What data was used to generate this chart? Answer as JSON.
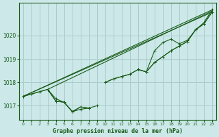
{
  "title": "Graphe pression niveau de la mer (hPa)",
  "bg_color": "#cce8e8",
  "grid_color": "#aacccc",
  "line_color": "#1a5c1a",
  "xlim": [
    -0.5,
    23.5
  ],
  "ylim": [
    1016.4,
    1021.4
  ],
  "yticks": [
    1017,
    1018,
    1019,
    1020
  ],
  "xticks": [
    0,
    1,
    2,
    3,
    4,
    5,
    6,
    7,
    8,
    9,
    10,
    11,
    12,
    13,
    14,
    15,
    16,
    17,
    18,
    19,
    20,
    21,
    22,
    23
  ],
  "series_main": [
    1017.4,
    1017.5,
    1017.6,
    1017.7,
    1017.3,
    1017.15,
    1016.75,
    1016.95,
    1016.9,
    null,
    1018.0,
    1018.15,
    1018.25,
    1018.35,
    1018.55,
    1018.45,
    1018.85,
    1019.1,
    1019.35,
    1019.55,
    1019.75,
    1020.25,
    1020.5,
    1021.0
  ],
  "series_low": [
    1017.4,
    1017.5,
    1017.6,
    1017.7,
    1017.2,
    1017.15,
    1016.75,
    1016.85,
    1016.9,
    null,
    1018.0,
    1018.15,
    1018.25,
    1018.35,
    1018.55,
    1018.45,
    1018.85,
    1019.1,
    1019.35,
    1019.55,
    1019.75,
    1020.25,
    1020.5,
    1021.0
  ],
  "series_spike": [
    null,
    null,
    null,
    1017.7,
    1017.2,
    1017.15,
    1016.75,
    1016.95,
    1016.9,
    1017.0,
    null,
    null,
    null,
    null,
    1018.55,
    1018.45,
    1019.35,
    1019.7,
    1019.85,
    1019.65,
    1019.8,
    1020.25,
    1020.55,
    1021.1
  ],
  "trend1_x": [
    0,
    23
  ],
  "trend1_y": [
    1017.4,
    1021.0
  ],
  "trend2_x": [
    0,
    23
  ],
  "trend2_y": [
    1017.4,
    1021.1
  ],
  "trend3_x": [
    3,
    23
  ],
  "trend3_y": [
    1017.7,
    1021.05
  ]
}
